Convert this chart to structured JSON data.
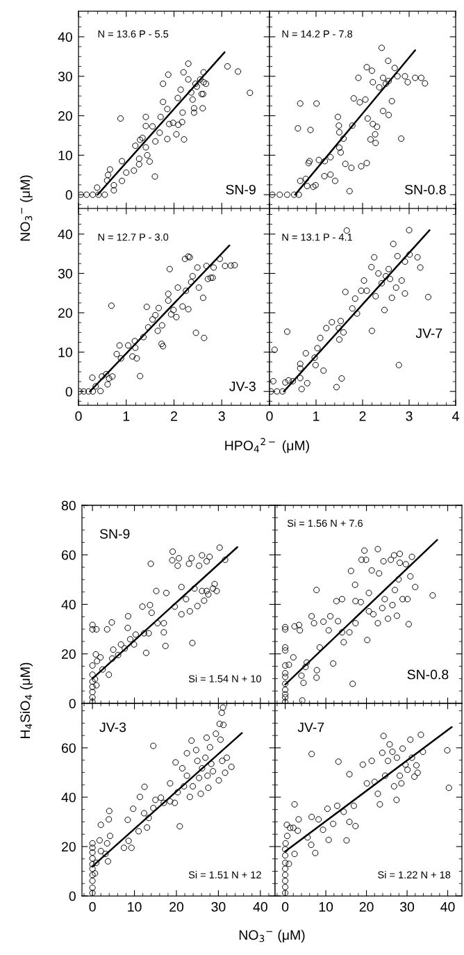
{
  "chart_data": [
    {
      "type": "scatter",
      "ylabel": "NO$_{3}$$^{−}$ (μM)",
      "xlim": [
        0,
        4
      ],
      "ylim": [
        -3.5,
        46.5
      ],
      "xticks": [
        0,
        1,
        2,
        3
      ],
      "yticks": [
        0,
        10,
        20,
        30,
        40
      ],
      "tick_labels": "y",
      "annotations": [
        "N = 13.6 P - 5.5",
        "SN-9"
      ],
      "series": [
        {
          "type": "scatter",
          "marker": "circle",
          "color": "#000000",
          "x": [
            0.05,
            0.17,
            0.3,
            0.42,
            0.55,
            0.39,
            0.66,
            0.62,
            0.6,
            0.74,
            0.74,
            0.88,
            0.91,
            0.91,
            1.0,
            1.16,
            1.19,
            1.27,
            1.27,
            1.29,
            1.34,
            1.41,
            1.41,
            1.41,
            1.44,
            1.49,
            1.55,
            1.6,
            1.61,
            1.7,
            1.72,
            1.77,
            1.77,
            1.86,
            1.88,
            1.86,
            1.9,
            1.98,
            2.05,
            2.08,
            2.09,
            2.17,
            2.18,
            2.21,
            2.14,
            2.2,
            2.3,
            2.3,
            2.39,
            2.42,
            2.42,
            2.45,
            2.55,
            2.58,
            2.6,
            2.62,
            2.62,
            2.67,
            2.61,
            2.36,
            2.48,
            3.12,
            3.34,
            3.59
          ],
          "values": [
            0,
            0,
            0,
            0,
            0,
            1.8,
            6.4,
            5.0,
            3.6,
            2.4,
            1.1,
            19.3,
            8.5,
            3.5,
            5.6,
            6.1,
            12.4,
            9.1,
            7.7,
            13.9,
            14.4,
            19.7,
            17.4,
            12.0,
            10.0,
            8.4,
            17.3,
            4.6,
            13.5,
            15.7,
            19.7,
            23.5,
            28.1,
            14.1,
            30.4,
            21.7,
            17.9,
            18.2,
            15.3,
            24.5,
            17.7,
            18.4,
            20.8,
            14.0,
            26.6,
            31.0,
            33.2,
            29.2,
            24.1,
            21.9,
            20.8,
            28.1,
            29.2,
            25.5,
            21.9,
            31.0,
            28.5,
            28.1,
            25.5,
            25.9,
            27.4,
            32.5,
            31.2,
            25.8
          ]
        },
        {
          "type": "line",
          "color": "#000000",
          "x": [
            0.4,
            3.06
          ],
          "values": [
            0,
            36.1
          ]
        }
      ]
    },
    {
      "type": "scatter",
      "xlim": [
        0,
        4
      ],
      "ylim": [
        -3.5,
        46.5
      ],
      "xticks": [
        0,
        1,
        2,
        3,
        4
      ],
      "yticks": [
        0,
        10,
        20,
        30,
        40
      ],
      "tick_labels": false,
      "annotations": [
        "N = 14.2 P - 7.8",
        "SN-0.8"
      ],
      "series": [
        {
          "type": "scatter",
          "marker": "circle",
          "color": "#000000",
          "x": [
            0.06,
            0.22,
            0.38,
            0.53,
            0.63,
            0.66,
            1.01,
            0.61,
            0.88,
            0.66,
            0.78,
            0.84,
            0.86,
            0.81,
            0.94,
            0.99,
            1.06,
            1.19,
            1.18,
            1.31,
            1.41,
            1.31,
            1.5,
            1.53,
            1.47,
            1.49,
            1.5,
            1.59,
            1.63,
            1.72,
            1.76,
            1.78,
            1.81,
            1.91,
            1.94,
            1.97,
            2.06,
            2.09,
            2.09,
            2.2,
            2.11,
            2.17,
            2.22,
            2.27,
            2.28,
            2.22,
            2.31,
            2.36,
            2.41,
            2.44,
            2.44,
            2.5,
            2.55,
            2.56,
            2.56,
            2.63,
            2.69,
            2.75,
            2.83,
            2.91,
            2.97,
            3.13,
            3.26,
            3.34
          ],
          "values": [
            0,
            0,
            0,
            0,
            0,
            23.1,
            23.1,
            16.8,
            16.4,
            3.5,
            4.0,
            8.0,
            8.5,
            2.2,
            2.0,
            2.4,
            8.8,
            8.5,
            4.7,
            5.1,
            3.5,
            9.5,
            11.9,
            10.7,
            19.7,
            17.5,
            15.8,
            14.2,
            7.8,
            0.9,
            6.8,
            17.5,
            24.4,
            29.6,
            23.4,
            7.2,
            24.1,
            8.0,
            32.3,
            31.4,
            19.3,
            14.0,
            28.5,
            15.3,
            13.1,
            17.9,
            17.2,
            27.2,
            37.2,
            21.2,
            29.6,
            28.1,
            33.9,
            20.2,
            28.8,
            23.7,
            32.1,
            30.0,
            14.2,
            30.0,
            28.5,
            29.6,
            29.6,
            28.2
          ]
        },
        {
          "type": "line",
          "color": "#000000",
          "x": [
            0.55,
            3.13
          ],
          "values": [
            0,
            36.6
          ]
        }
      ]
    },
    {
      "type": "scatter",
      "xlabel": "HPO$_{4}$$^{2−}$ (μM)",
      "xlim": [
        0,
        4
      ],
      "ylim": [
        -3.5,
        46.5
      ],
      "xticks": [
        0,
        1,
        2,
        3
      ],
      "yticks": [
        0,
        10,
        20,
        30,
        40
      ],
      "annotations": [
        "N = 12.7 P - 3.0",
        "JV-3"
      ],
      "series": [
        {
          "type": "scatter",
          "marker": "circle",
          "color": "#000000",
          "x": [
            0.02,
            0.11,
            0.21,
            0.3,
            0.29,
            0.36,
            0.46,
            0.49,
            0.58,
            0.61,
            0.64,
            0.71,
            0.69,
            0.8,
            0.86,
            0.89,
            1.04,
            1.13,
            1.19,
            1.22,
            1.18,
            1.29,
            1.36,
            1.43,
            1.46,
            1.55,
            1.61,
            1.68,
            1.66,
            1.75,
            1.74,
            1.77,
            1.88,
            1.91,
            1.88,
            1.94,
            1.99,
            2.05,
            2.08,
            2.18,
            2.23,
            2.3,
            2.33,
            2.3,
            2.25,
            2.36,
            2.39,
            2.46,
            2.49,
            2.52,
            2.61,
            2.63,
            2.68,
            2.71,
            2.77,
            2.83,
            2.81,
            2.96,
            3.07,
            3.19,
            3.27
          ],
          "values": [
            0,
            0,
            0,
            0,
            3.5,
            1.3,
            0.1,
            3.8,
            4.4,
            1.8,
            3.3,
            3.8,
            21.8,
            9.5,
            11.7,
            8.4,
            11.7,
            8.9,
            11.1,
            8.4,
            12.8,
            3.9,
            13.8,
            21.5,
            16.3,
            18.3,
            19.4,
            21.2,
            15.4,
            16.8,
            12.1,
            11.5,
            24.8,
            31.1,
            23.1,
            19.6,
            20.7,
            18.9,
            26.4,
            21.6,
            33.7,
            34.3,
            34.1,
            20.9,
            25.6,
            27.8,
            29.3,
            14.9,
            31.5,
            26.4,
            23.8,
            13.6,
            31.9,
            28.6,
            28.9,
            31.5,
            28.9,
            33.7,
            31.9,
            32.0,
            32.1
          ]
        },
        {
          "type": "line",
          "color": "#000000",
          "x": [
            0.24,
            3.16
          ],
          "values": [
            0,
            37.1
          ]
        }
      ]
    },
    {
      "type": "scatter",
      "xlim": [
        0,
        4
      ],
      "ylim": [
        -3.5,
        46.5
      ],
      "xticks": [
        0,
        1,
        2,
        3,
        4
      ],
      "yticks": [
        0,
        10,
        20,
        30,
        40
      ],
      "tick_labels": "x",
      "annotations": [
        "N = 13.1 P - 4.1",
        "JV-7"
      ],
      "series": [
        {
          "type": "scatter",
          "marker": "circle",
          "color": "#000000",
          "x": [
            0.03,
            0.16,
            0.28,
            0.08,
            0.11,
            0.38,
            0.34,
            0.41,
            0.5,
            0.66,
            0.66,
            0.66,
            0.69,
            0.81,
            0.78,
            0.97,
            0.99,
            1.03,
            1.09,
            1.16,
            1.22,
            1.34,
            1.44,
            1.49,
            1.5,
            1.53,
            1.55,
            1.59,
            1.63,
            1.66,
            1.78,
            1.84,
            1.88,
            1.97,
            2.03,
            2.09,
            2.19,
            2.2,
            2.25,
            2.28,
            2.34,
            2.41,
            2.47,
            2.5,
            2.56,
            2.59,
            2.63,
            2.66,
            2.72,
            2.75,
            2.78,
            2.84,
            2.91,
            2.91,
            3.0,
            3.01,
            3.18,
            3.24,
            3.41
          ],
          "values": [
            0,
            0,
            0,
            2.6,
            10.6,
            15.2,
            2.3,
            2.8,
            2.6,
            3.4,
            5.9,
            7.0,
            0.6,
            2.1,
            9.7,
            8.6,
            6.7,
            11.0,
            13.6,
            5.3,
            16.1,
            17.6,
            1.1,
            16.1,
            13.2,
            17.9,
            3.3,
            15.0,
            25.3,
            40.9,
            21.1,
            23.6,
            19.8,
            25.6,
            28.2,
            25.6,
            31.6,
            15.4,
            34.1,
            24.2,
            30.0,
            27.5,
            20.7,
            29.3,
            31.1,
            28.6,
            23.8,
            37.5,
            26.4,
            34.4,
            6.7,
            28.2,
            24.9,
            33.0,
            41.0,
            34.8,
            34.1,
            31.5,
            24.0
          ]
        },
        {
          "type": "line",
          "color": "#000000",
          "x": [
            0.31,
            3.44
          ],
          "values": [
            0,
            41.0
          ]
        }
      ]
    },
    {
      "type": "scatter",
      "ylabel": "H$_{4}$SiO$_{4}$ (μM)",
      "xlim": [
        -2.5,
        43.5
      ],
      "ylim": [
        0,
        80
      ],
      "xticks": [
        0,
        10,
        20,
        30,
        40
      ],
      "yticks": [
        0,
        20,
        40,
        60,
        80
      ],
      "tick_labels": "y",
      "annotations": [
        "SN-9",
        "Si = 1.54 N + 10"
      ],
      "series": [
        {
          "type": "scatter",
          "marker": "circle",
          "color": "#000000",
          "x": [
            0,
            0,
            0,
            0,
            0,
            0,
            0,
            0,
            0,
            0.95,
            0.8,
            1.1,
            0.6,
            0.95,
            1.9,
            2.4,
            3.5,
            3.9,
            4.6,
            4.7,
            4.96,
            6.1,
            6.8,
            7.7,
            8.5,
            8.4,
            9.0,
            9.9,
            10.3,
            11.9,
            12.3,
            12.8,
            13.4,
            13.9,
            13.7,
            14.1,
            15.2,
            15.5,
            17.0,
            17.0,
            17.4,
            17.6,
            19.1,
            19.0,
            19.6,
            20.3,
            20.6,
            21.2,
            21.2,
            22.3,
            23.2,
            23.0,
            23.6,
            23.8,
            24.3,
            25.0,
            25.4,
            26.1,
            26.1,
            26.6,
            27.2,
            27.9,
            27.2,
            28.7,
            29.1,
            29.6,
            30.3,
            31.6,
            27.6
          ],
          "values": [
            0.6,
            2.4,
            4.6,
            6.7,
            8.8,
            11.6,
            15.3,
            31.7,
            29.9,
            29.9,
            19.8,
            17.1,
            9.8,
            7.3,
            18.6,
            13.7,
            29.9,
            11.6,
            32.7,
            18.1,
            21.7,
            19.5,
            23.8,
            22.2,
            35.2,
            30.5,
            25.9,
            23.8,
            27.8,
            39.1,
            28.3,
            20.4,
            28.3,
            56.4,
            39.7,
            36.6,
            45.4,
            32.4,
            32.4,
            28.7,
            23.2,
            44.6,
            61.3,
            57.8,
            39.1,
            55.6,
            58.6,
            47.0,
            36.0,
            42.1,
            37.2,
            56.4,
            58.6,
            24.4,
            46.4,
            39.3,
            55.6,
            59.8,
            45.4,
            41.5,
            57.4,
            59.2,
            45.4,
            46.4,
            48.2,
            45.4,
            62.9,
            58.0,
            44.0
          ]
        },
        {
          "type": "line",
          "color": "#000000",
          "x": [
            0,
            34.5
          ],
          "values": [
            10,
            63.1
          ]
        }
      ]
    },
    {
      "type": "scatter",
      "xlim": [
        -2.5,
        43.5
      ],
      "ylim": [
        0,
        80
      ],
      "xticks": [
        0,
        10,
        20,
        30,
        40
      ],
      "yticks": [
        0,
        20,
        40,
        60,
        80
      ],
      "tick_labels": false,
      "annotations": [
        "Si = 1.56 N + 7.6",
        "SN-0.8"
      ],
      "series": [
        {
          "type": "scatter",
          "marker": "circle",
          "color": "#000000",
          "x": [
            0,
            0,
            0,
            0,
            0,
            0,
            0,
            0,
            0,
            0,
            0,
            0,
            0.9,
            2.0,
            2.3,
            3.4,
            3.6,
            4.0,
            4.2,
            4.5,
            5.0,
            5.3,
            6.5,
            7.1,
            7.7,
            7.7,
            7.8,
            8.5,
            9.4,
            10.7,
            11.1,
            11.8,
            12.6,
            13.0,
            14.0,
            14.0,
            14.4,
            15.8,
            16.2,
            16.6,
            17.2,
            17.3,
            17.3,
            18.6,
            18.8,
            19.5,
            19.9,
            20.2,
            20.6,
            20.6,
            21.3,
            21.7,
            22.8,
            22.8,
            23.1,
            23.9,
            24.2,
            24.5,
            25.3,
            26.0,
            26.4,
            26.8,
            27.0,
            27.5,
            27.9,
            28.2,
            28.2,
            28.9,
            29.7,
            30.1,
            30.4,
            30.8,
            31.2,
            32.0,
            36.3
          ],
          "values": [
            0.6,
            2.4,
            3.7,
            5.5,
            7.9,
            10.7,
            12.2,
            15.3,
            21.4,
            22.6,
            29.9,
            30.8,
            15.6,
            18.6,
            31.1,
            31.7,
            29.5,
            11.2,
            1.2,
            8.3,
            14.7,
            16.5,
            35.2,
            32.4,
            45.8,
            10.4,
            13.4,
            22.6,
            33.0,
            29.5,
            35.2,
            16.1,
            41.3,
            33.2,
            28.7,
            42.1,
            24.7,
            28.7,
            53.5,
            7.9,
            47.9,
            32.4,
            41.3,
            40.9,
            58.0,
            61.7,
            58.0,
            25.6,
            44.6,
            37.2,
            53.7,
            36.0,
            62.3,
            32.4,
            52.5,
            38.5,
            57.4,
            42.1,
            34.2,
            58.0,
            39.7,
            59.8,
            45.8,
            35.4,
            50.1,
            60.4,
            56.8,
            42.1,
            56.2,
            42.1,
            32.0,
            51.3,
            59.2,
            47.0,
            43.6
          ]
        },
        {
          "type": "line",
          "color": "#000000",
          "x": [
            0,
            37.4
          ],
          "values": [
            7.6,
            66
          ]
        }
      ]
    },
    {
      "type": "scatter",
      "xlabel": "NO$_{3}$$^{−}$ (μM)",
      "xlim": [
        -2.5,
        43.5
      ],
      "ylim": [
        0,
        78
      ],
      "xticks": [
        0,
        10,
        20,
        30,
        40
      ],
      "yticks": [
        0,
        20,
        40,
        60
      ],
      "annotations": [
        "JV-3",
        "Si = 1.51 N + 12"
      ],
      "series": [
        {
          "type": "scatter",
          "marker": "circle",
          "color": "#000000",
          "x": [
            0,
            0,
            0,
            0,
            0,
            0,
            0,
            0,
            0,
            0,
            0.6,
            0.9,
            1.7,
            2.0,
            2.0,
            3.1,
            3.5,
            3.7,
            3.9,
            4.0,
            4.2,
            7.5,
            8.4,
            8.6,
            9.3,
            9.7,
            11.0,
            11.3,
            12.3,
            12.4,
            13.0,
            13.4,
            14.5,
            14.5,
            15.0,
            16.3,
            17.0,
            18.5,
            18.5,
            19.6,
            19.8,
            20.3,
            20.8,
            21.4,
            21.8,
            22.5,
            22.5,
            23.2,
            23.6,
            23.9,
            24.7,
            25.0,
            25.4,
            25.8,
            26.1,
            26.9,
            27.2,
            27.4,
            27.6,
            28.0,
            28.3,
            28.7,
            29.4,
            30.1,
            30.3,
            30.5,
            30.9,
            31.2,
            31.1,
            31.6,
            32.0,
            33.1,
            30.8
          ],
          "values": [
            1.2,
            3.3,
            6.1,
            8.5,
            11.0,
            12.8,
            15.2,
            17.6,
            19.5,
            21.3,
            9.1,
            13.4,
            22.5,
            28.8,
            18.2,
            17.0,
            21.3,
            14.0,
            31.0,
            34.4,
            24.3,
            19.5,
            30.8,
            22.3,
            19.5,
            35.3,
            26.2,
            40.1,
            33.5,
            44.2,
            27.7,
            31.6,
            60.8,
            35.6,
            38.9,
            39.8,
            37.7,
            45.6,
            38.3,
            37.7,
            54.1,
            42.0,
            28.2,
            51.7,
            44.4,
            57.8,
            48.7,
            40.1,
            62.9,
            44.4,
            59.1,
            54.7,
            47.8,
            41.4,
            51.7,
            56.0,
            64.1,
            48.7,
            43.8,
            60.2,
            53.5,
            50.5,
            65.7,
            46.8,
            69.7,
            63.3,
            54.7,
            69.3,
            76.3,
            49.9,
            56.0,
            52.3,
            74.2
          ]
        },
        {
          "type": "line",
          "color": "#000000",
          "x": [
            0,
            35.6
          ],
          "values": [
            12,
            66
          ]
        }
      ]
    },
    {
      "type": "scatter",
      "xlim": [
        -2.5,
        43.5
      ],
      "ylim": [
        0,
        78
      ],
      "xticks": [
        0,
        10,
        20,
        30,
        40
      ],
      "yticks": [
        0,
        20,
        40,
        60
      ],
      "tick_labels": "x",
      "annotations": [
        "JV-7",
        "Si = 1.22 N + 18"
      ],
      "series": [
        {
          "type": "scatter",
          "marker": "circle",
          "color": "#000000",
          "x": [
            0,
            0,
            0,
            0,
            0,
            0,
            0,
            0,
            0.1,
            0.5,
            0.9,
            0.4,
            1.2,
            2.0,
            2.3,
            2.3,
            3.3,
            3.1,
            5.5,
            6.5,
            6.4,
            6.5,
            7.4,
            8.2,
            9.3,
            10.4,
            10.7,
            11.8,
            12.8,
            13.1,
            14.4,
            15.1,
            15.8,
            15.8,
            16.9,
            17.3,
            19.1,
            20.1,
            21.3,
            22.0,
            22.8,
            23.3,
            23.9,
            24.2,
            24.6,
            25.3,
            25.7,
            26.4,
            26.8,
            27.4,
            27.5,
            28.2,
            28.6,
            28.9,
            29.6,
            30.1,
            30.8,
            31.2,
            31.8,
            32.3,
            32.6,
            33.4,
            33.9,
            39.9,
            40.3
          ],
          "values": [
            1.2,
            3.6,
            6.1,
            8.5,
            11.0,
            13.4,
            16.4,
            18.9,
            21.3,
            24.3,
            13.0,
            28.8,
            27.6,
            27.6,
            37.1,
            17.0,
            31.0,
            26.4,
            23.7,
            57.5,
            20.7,
            32.0,
            17.4,
            31.0,
            26.8,
            35.3,
            22.7,
            29.2,
            36.5,
            54.4,
            34.1,
            22.5,
            49.3,
            30.0,
            36.5,
            28.3,
            53.2,
            45.6,
            54.7,
            46.2,
            41.4,
            37.1,
            58.0,
            64.8,
            48.7,
            54.7,
            61.4,
            58.4,
            44.4,
            38.9,
            56.0,
            48.7,
            45.6,
            59.7,
            53.2,
            51.1,
            63.3,
            56.0,
            48.3,
            52.9,
            49.9,
            65.3,
            58.4,
            59.0,
            43.8
          ]
        },
        {
          "type": "line",
          "color": "#000000",
          "x": [
            0,
            41
          ],
          "values": [
            18,
            68.4
          ]
        }
      ]
    }
  ]
}
